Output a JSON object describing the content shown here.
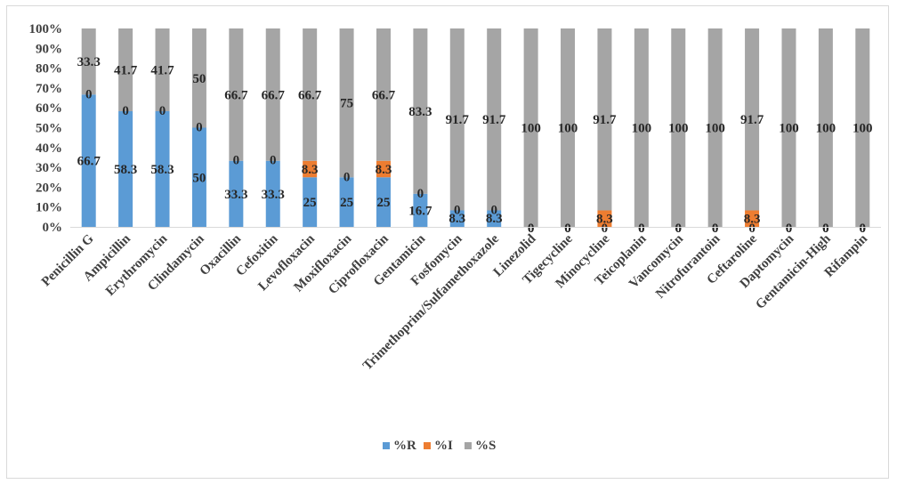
{
  "chart_data": {
    "type": "bar",
    "stacked": true,
    "title": "",
    "xlabel": "",
    "ylabel": "",
    "ylim": [
      0,
      100
    ],
    "y_tick_step": 10,
    "y_tick_format": "percent",
    "grid": false,
    "legend_position": "bottom",
    "categories": [
      "Penicillin G",
      "Ampicillin",
      "Erythromycin",
      "Clindamycin",
      "Oxacillin",
      "Cefoxitin",
      "Levofloxacin",
      "Moxifloxacin",
      "Ciprofloxacin",
      "Gentamicin",
      "Fosfomycin",
      "Trimethoprim/Sulfamethoxazole",
      "Linezolid",
      "Tigecycline",
      "Minocycline",
      "Teicoplanin",
      "Vancomycin",
      "Nitrofurantoin",
      "Ceftaroline",
      "Daptomycin",
      "Gentamicin-High",
      "Rifampin"
    ],
    "series": [
      {
        "name": "%R",
        "color": "#5b9bd5",
        "values": [
          66.7,
          58.3,
          58.3,
          50,
          33.3,
          33.3,
          25,
          25,
          25,
          16.7,
          8.3,
          8.3,
          0,
          0,
          0,
          0,
          0,
          0,
          0,
          0,
          0,
          0
        ]
      },
      {
        "name": "%I",
        "color": "#ed7d31",
        "values": [
          0,
          0,
          0,
          0,
          0,
          0,
          8.3,
          0,
          8.3,
          0,
          0,
          0,
          0,
          0,
          8.3,
          0,
          0,
          0,
          8.3,
          0,
          0,
          0
        ]
      },
      {
        "name": "%S",
        "color": "#a5a5a5",
        "values": [
          33.3,
          41.7,
          41.7,
          50,
          66.7,
          66.7,
          66.7,
          75,
          66.7,
          83.3,
          91.7,
          91.7,
          100,
          100,
          91.7,
          100,
          100,
          100,
          91.7,
          100,
          100,
          100
        ]
      }
    ]
  }
}
